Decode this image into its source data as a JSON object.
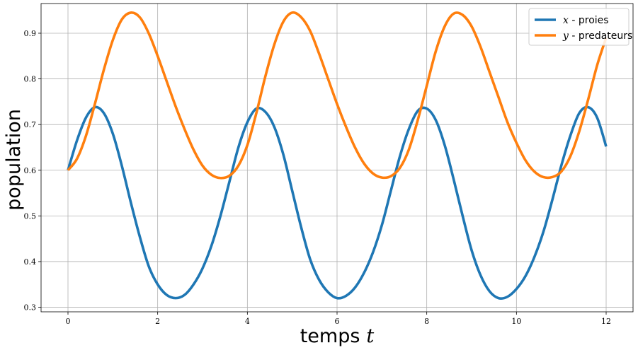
{
  "chart_data": {
    "type": "line",
    "title": "",
    "xlabel": "temps",
    "xlabel_var": "t",
    "ylabel": "population",
    "xlim": [
      -0.6,
      12.6
    ],
    "ylim": [
      0.29,
      0.965
    ],
    "xticks": [
      0,
      2,
      4,
      6,
      8,
      10,
      12
    ],
    "xtick_labels": [
      "0",
      "2",
      "4",
      "6",
      "8",
      "10",
      "12"
    ],
    "yticks": [
      0.3,
      0.4,
      0.5,
      0.6,
      0.7,
      0.8,
      0.9
    ],
    "ytick_labels": [
      "0.3",
      "0.4",
      "0.5",
      "0.6",
      "0.7",
      "0.8",
      "0.9"
    ],
    "grid": true,
    "legend_position": "top-right",
    "series": [
      {
        "name": "proies",
        "var": "x",
        "sep": " - ",
        "color": "#1f77b4",
        "x": [
          0,
          0.2,
          0.4,
          0.6,
          0.8,
          1.0,
          1.2,
          1.4,
          1.6,
          1.8,
          2.0,
          2.2,
          2.4,
          2.6,
          2.8,
          3.0,
          3.2,
          3.4,
          3.6,
          3.8,
          4.0,
          4.2,
          4.4,
          4.6,
          4.8,
          5.0,
          5.2,
          5.4,
          5.6,
          5.8,
          6.0,
          6.2,
          6.4,
          6.6,
          6.8,
          7.0,
          7.2,
          7.4,
          7.6,
          7.8,
          8.0,
          8.2,
          8.4,
          8.6,
          8.8,
          9.0,
          9.2,
          9.4,
          9.6,
          9.8,
          10.0,
          10.2,
          10.4,
          10.6,
          10.8,
          11.0,
          11.2,
          11.4,
          11.6,
          11.8,
          12.0
        ],
        "y": [
          0.6,
          0.665,
          0.715,
          0.738,
          0.725,
          0.68,
          0.61,
          0.53,
          0.455,
          0.39,
          0.35,
          0.327,
          0.32,
          0.327,
          0.35,
          0.385,
          0.435,
          0.5,
          0.575,
          0.65,
          0.705,
          0.735,
          0.728,
          0.695,
          0.635,
          0.555,
          0.475,
          0.405,
          0.36,
          0.333,
          0.32,
          0.325,
          0.343,
          0.375,
          0.42,
          0.48,
          0.555,
          0.63,
          0.69,
          0.73,
          0.735,
          0.71,
          0.655,
          0.58,
          0.5,
          0.425,
          0.37,
          0.335,
          0.32,
          0.323,
          0.34,
          0.368,
          0.41,
          0.465,
          0.535,
          0.61,
          0.675,
          0.725,
          0.738,
          0.715,
          0.652
        ]
      },
      {
        "name": "predateurs",
        "var": "y",
        "sep": " - ",
        "color": "#ff7f0e",
        "x": [
          0,
          0.2,
          0.4,
          0.6,
          0.8,
          1.0,
          1.2,
          1.4,
          1.6,
          1.8,
          2.0,
          2.2,
          2.4,
          2.6,
          2.8,
          3.0,
          3.2,
          3.4,
          3.6,
          3.8,
          4.0,
          4.2,
          4.4,
          4.6,
          4.8,
          5.0,
          5.2,
          5.4,
          5.6,
          5.8,
          6.0,
          6.2,
          6.4,
          6.6,
          6.8,
          7.0,
          7.2,
          7.4,
          7.6,
          7.8,
          8.0,
          8.2,
          8.4,
          8.6,
          8.8,
          9.0,
          9.2,
          9.4,
          9.6,
          9.8,
          10.0,
          10.2,
          10.4,
          10.6,
          10.8,
          11.0,
          11.2,
          11.4,
          11.6,
          11.8,
          12.0
        ],
        "y": [
          0.6,
          0.625,
          0.675,
          0.745,
          0.82,
          0.885,
          0.93,
          0.945,
          0.935,
          0.9,
          0.85,
          0.795,
          0.74,
          0.69,
          0.645,
          0.61,
          0.59,
          0.583,
          0.588,
          0.61,
          0.655,
          0.725,
          0.805,
          0.875,
          0.925,
          0.945,
          0.935,
          0.905,
          0.855,
          0.8,
          0.745,
          0.695,
          0.65,
          0.615,
          0.593,
          0.584,
          0.587,
          0.605,
          0.645,
          0.71,
          0.785,
          0.86,
          0.915,
          0.943,
          0.94,
          0.915,
          0.87,
          0.815,
          0.76,
          0.705,
          0.66,
          0.622,
          0.597,
          0.585,
          0.585,
          0.597,
          0.63,
          0.685,
          0.755,
          0.83,
          0.89
        ]
      }
    ]
  }
}
